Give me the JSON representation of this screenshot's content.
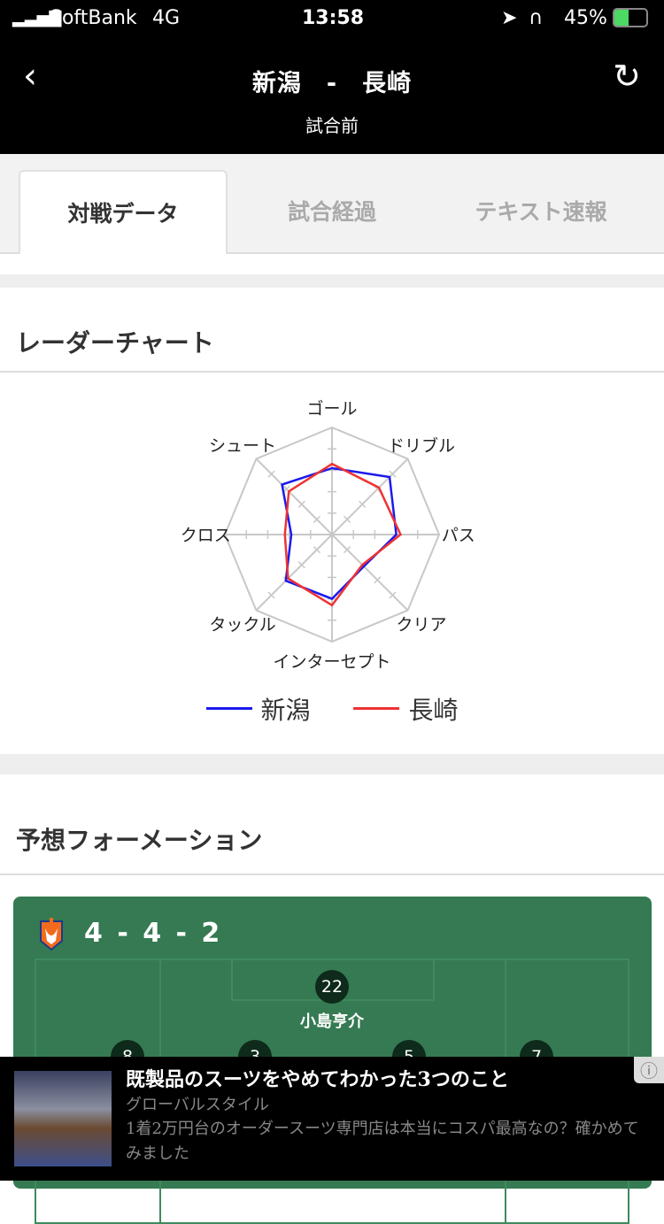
{
  "status_bar": {
    "carrier": "SoftBank",
    "network": "4G",
    "time": "13:58",
    "battery": "45%"
  },
  "header": {
    "title": "新潟　-　長崎",
    "subtitle": "試合前"
  },
  "tabs": [
    {
      "label": "対戦データ",
      "active": true
    },
    {
      "label": "試合経過",
      "active": false
    },
    {
      "label": "テキスト速報",
      "active": false
    }
  ],
  "radar_section": {
    "title": "レーダーチャート"
  },
  "chart_data": {
    "type": "radar",
    "axes": [
      "ゴール",
      "ドリブル",
      "パス",
      "クリア",
      "インターセプト",
      "タックル",
      "クロス",
      "シュート"
    ],
    "range": [
      0,
      5
    ],
    "grid": true,
    "legend_position": "bottom",
    "series": [
      {
        "name": "新潟",
        "color": "#1a1aee",
        "values": [
          3.1,
          3.8,
          3.0,
          2.1,
          3.0,
          3.05,
          1.9,
          3.3
        ]
      },
      {
        "name": "長崎",
        "color": "#ee3333",
        "values": [
          3.3,
          3.1,
          3.2,
          2.0,
          3.3,
          2.9,
          2.2,
          2.85
        ]
      }
    ]
  },
  "formation_section": {
    "title": "予想フォーメーション",
    "formation": "4 - 4 - 2",
    "goalkeeper": {
      "number": "22",
      "name": "小島亨介"
    },
    "defenders": [
      {
        "number": "8"
      },
      {
        "number": "3"
      },
      {
        "number": "5"
      },
      {
        "number": "7"
      }
    ]
  },
  "ad": {
    "headline": "既製品のスーツをやめてわかった3つのこと",
    "sponsor": "グローバルスタイル",
    "description": "1着2万円台のオーダースーツ専門店は本当にコスパ最高なの？確かめてみました"
  }
}
